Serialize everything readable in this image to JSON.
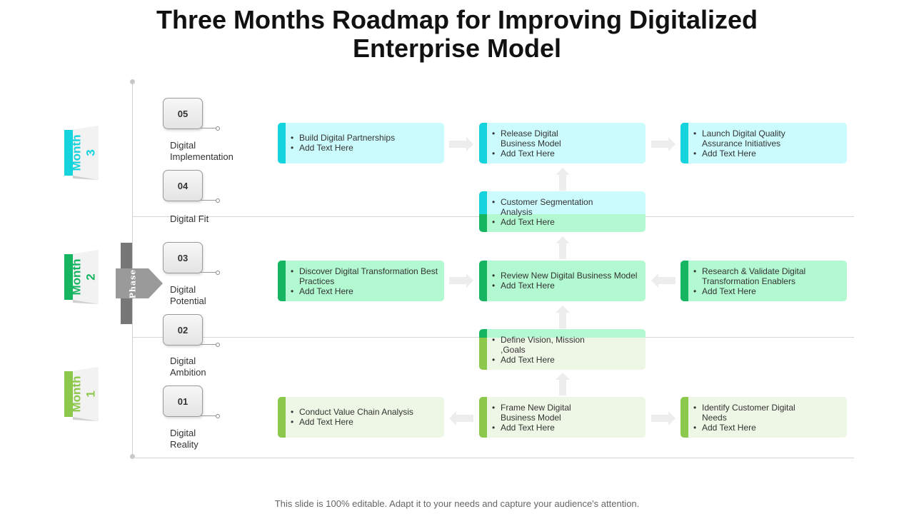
{
  "title_lines": [
    "Three Months Roadmap for Improving Digitalized",
    "Enterprise Model"
  ],
  "footer": "This slide is 100% editable. Adapt it to your needs and capture your audience's attention.",
  "phase_label": "Phase",
  "months": [
    {
      "label": "Month\n3",
      "color": "#15d4dd"
    },
    {
      "label": "Month\n2",
      "color": "#16b561"
    },
    {
      "label": "Month\n1",
      "color": "#8cc84b"
    }
  ],
  "steps": [
    {
      "number": "05",
      "label": "Digital\nImplementation"
    },
    {
      "number": "04",
      "label": "Digital Fit"
    },
    {
      "number": "03",
      "label": "Digital\nPotential"
    },
    {
      "number": "02",
      "label": "Digital\nAmbition"
    },
    {
      "number": "01",
      "label": "Digital\nReality"
    }
  ],
  "boxes": [
    {
      "id": "m3-a",
      "theme": "teal",
      "items": [
        "Build Digital Partnerships",
        "Add Text Here"
      ]
    },
    {
      "id": "m3-b",
      "theme": "teal",
      "items": [
        "Release Digital Business Model",
        "Add Text Here"
      ]
    },
    {
      "id": "m3-c",
      "theme": "teal",
      "items": [
        "Launch Digital Quality Assurance Initiatives",
        "Add Text Here"
      ]
    },
    {
      "id": "m23-trans",
      "theme": "teal-mint",
      "items": [
        "Customer Segmentation Analysis",
        "Add Text Here"
      ]
    },
    {
      "id": "m2-a",
      "theme": "mint",
      "items": [
        "Discover Digital Transformation Best Practices",
        "Add Text Here"
      ]
    },
    {
      "id": "m2-b",
      "theme": "mint",
      "items": [
        "Review New Digital Business Model",
        "Add Text Here"
      ]
    },
    {
      "id": "m2-c",
      "theme": "mint",
      "items": [
        "Research & Validate Digital Transformation Enablers",
        "Add Text Here"
      ]
    },
    {
      "id": "m12-trans",
      "theme": "mint-lime",
      "items": [
        "Define Vision, Mission ,Goals",
        "Add Text Here"
      ]
    },
    {
      "id": "m1-a",
      "theme": "lime",
      "items": [
        "Conduct Value Chain Analysis",
        "Add Text Here"
      ]
    },
    {
      "id": "m1-b",
      "theme": "lime",
      "items": [
        "Frame New Digital Business Model",
        "Add Text Here"
      ]
    },
    {
      "id": "m1-c",
      "theme": "lime",
      "items": [
        "Identify Customer Digital Needs",
        "Add Text Here"
      ]
    }
  ]
}
